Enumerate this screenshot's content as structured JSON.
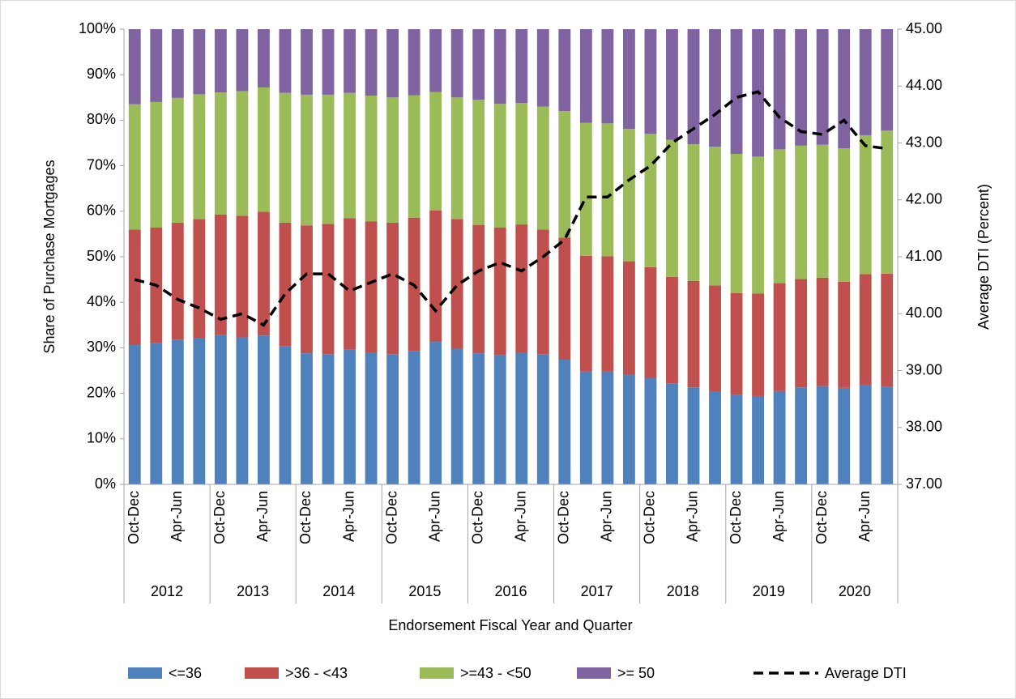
{
  "chart_data": {
    "type": "bar",
    "stacked": true,
    "x_label": "Endorsement Fiscal Year and Quarter",
    "y_label": "Share of Purchase Mortgages",
    "y2_label": "Average DTI (Percent)",
    "categories": [
      "Oct-Dec",
      null,
      "Apr-Jun",
      null,
      "Oct-Dec",
      null,
      "Apr-Jun",
      null,
      "Oct-Dec",
      null,
      "Apr-Jun",
      null,
      "Oct-Dec",
      null,
      "Apr-Jun",
      null,
      "Oct-Dec",
      null,
      "Apr-Jun",
      null,
      "Oct-Dec",
      null,
      "Apr-Jun",
      null,
      "Oct-Dec",
      null,
      "Apr-Jun",
      null,
      "Oct-Dec",
      null,
      "Apr-Jun",
      null,
      "Oct-Dec",
      null,
      "Apr-Jun",
      null
    ],
    "groups": [
      "2012",
      "2013",
      "2014",
      "2015",
      "2016",
      "2017",
      "2018",
      "2019",
      "2020"
    ],
    "series": [
      {
        "name": "<=36",
        "color": "#4f81bd",
        "values": [
          30.6,
          31,
          31.8,
          32.2,
          32.8,
          32.3,
          32.7,
          30.4,
          28.8,
          28.6,
          29.6,
          29.0,
          28.6,
          29.3,
          31.3,
          29.8,
          28.8,
          28.4,
          29.0,
          28.6,
          27.4,
          24.8,
          24.8,
          24.1,
          23.4,
          22.2,
          21.3,
          20.3,
          19.6,
          19.4,
          20.5,
          21.3,
          21.6,
          21.2,
          21.9,
          21.4
        ]
      },
      {
        "name": ">36 - <43",
        "color": "#c0504d",
        "values": [
          25.4,
          25.4,
          25.7,
          26.1,
          26.5,
          26.7,
          27.2,
          27.1,
          28.1,
          28.6,
          28.9,
          28.8,
          28.9,
          29.3,
          28.9,
          28.5,
          28.2,
          28.0,
          28.1,
          27.4,
          26.8,
          25.4,
          25.3,
          24.9,
          24.3,
          23.4,
          23.4,
          23.4,
          22.4,
          22.5,
          23.7,
          23.8,
          23.8,
          23.3,
          24.3,
          24.9
        ]
      },
      {
        "name": ">=43 - <50",
        "color": "#9bbb59",
        "values": [
          27.5,
          27.6,
          27.4,
          27.4,
          26.8,
          27.4,
          27.3,
          28.5,
          28.7,
          28.4,
          27.5,
          27.6,
          27.5,
          26.9,
          26.0,
          26.7,
          27.5,
          27.2,
          26.7,
          27.0,
          27.8,
          29.2,
          29.2,
          29.1,
          29.3,
          30.1,
          30.0,
          30.5,
          30.6,
          30.1,
          29.4,
          29.3,
          29.2,
          29.3,
          30.5,
          31.4
        ]
      },
      {
        "name": ">= 50",
        "color": "#8064a2",
        "values": [
          16.5,
          16,
          15.1,
          14.3,
          13.9,
          13.6,
          12.8,
          14,
          14.4,
          14.4,
          14,
          14.6,
          15,
          14.5,
          13.8,
          15,
          15.5,
          16.4,
          16.2,
          17,
          18,
          20.6,
          20.7,
          21.9,
          23,
          24.3,
          25.3,
          25.8,
          27.4,
          28,
          26.4,
          25.6,
          25.4,
          26.2,
          23.3,
          22.3
        ]
      },
      {
        "name": "Average DTI",
        "type": "line",
        "axis": "y2",
        "color": "#000000",
        "dashed": true,
        "values": [
          40.6,
          40.5,
          40.25,
          40.1,
          39.9,
          40.0,
          39.8,
          40.35,
          40.7,
          40.7,
          40.4,
          40.55,
          40.7,
          40.5,
          40.05,
          40.5,
          40.75,
          40.9,
          40.75,
          41.0,
          41.3,
          42.05,
          42.05,
          42.35,
          42.6,
          43.0,
          43.25,
          43.5,
          43.8,
          43.9,
          43.45,
          43.2,
          43.15,
          43.4,
          42.95,
          42.9
        ]
      }
    ],
    "ylim": [
      0,
      100
    ],
    "yticks": [
      {
        "value": 0,
        "label": "0%"
      },
      {
        "value": 10,
        "label": "10%"
      },
      {
        "value": 20,
        "label": "20%"
      },
      {
        "value": 30,
        "label": "30%"
      },
      {
        "value": 40,
        "label": "40%"
      },
      {
        "value": 50,
        "label": "50%"
      },
      {
        "value": 60,
        "label": "60%"
      },
      {
        "value": 70,
        "label": "70%"
      },
      {
        "value": 80,
        "label": "80%"
      },
      {
        "value": 90,
        "label": "90%"
      },
      {
        "value": 100,
        "label": "100%"
      }
    ],
    "y2lim": [
      37,
      45
    ],
    "y2ticks": [
      {
        "value": 37,
        "label": "37.00"
      },
      {
        "value": 38,
        "label": "38.00"
      },
      {
        "value": 39,
        "label": "39.00"
      },
      {
        "value": 40,
        "label": "40.00"
      },
      {
        "value": 41,
        "label": "41.00"
      },
      {
        "value": 42,
        "label": "42.00"
      },
      {
        "value": 43,
        "label": "43.00"
      },
      {
        "value": 44,
        "label": "44.00"
      },
      {
        "value": 45,
        "label": "45.00"
      }
    ],
    "legend": "bottom"
  }
}
